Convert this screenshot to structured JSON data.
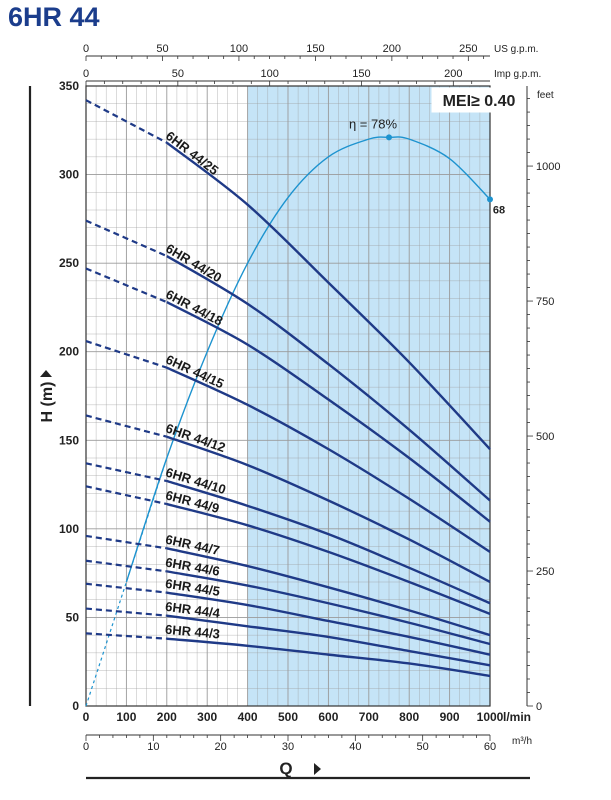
{
  "title": "6HR 44",
  "chart_data": {
    "type": "line",
    "title": "6HR 44",
    "xlabel": "Q",
    "x_unit": "l/min",
    "ylabel": "H (m)",
    "xlim": [
      0,
      1000
    ],
    "ylim": [
      0,
      350
    ],
    "x_ticks": [
      0,
      100,
      200,
      300,
      400,
      500,
      600,
      700,
      800,
      900,
      1000
    ],
    "y_ticks": [
      0,
      50,
      100,
      150,
      200,
      250,
      300,
      350
    ],
    "grid": true,
    "recommended_range": [
      400,
      1000
    ],
    "mei_label": "MEI≥ 0.40",
    "secondary_axes": {
      "top_us": {
        "unit": "US g.p.m.",
        "ticks": [
          "0",
          "50",
          "100",
          "150",
          "200",
          "250"
        ]
      },
      "top_imp": {
        "unit": "Imp g.p.m.",
        "ticks": [
          "0",
          "50",
          "100",
          "150",
          "200"
        ]
      },
      "right_feet": {
        "unit": "feet",
        "ticks": [
          "0",
          "250",
          "500",
          "750",
          "1000"
        ]
      },
      "bottom_m3h": {
        "unit": "m³/h",
        "ticks": [
          "0",
          "10",
          "20",
          "30",
          "40",
          "50",
          "60"
        ]
      }
    },
    "series": [
      {
        "name": "6HR 44/25",
        "x": [
          0,
          200,
          400,
          600,
          800,
          1000
        ],
        "y": [
          342,
          318,
          283,
          239,
          194,
          145
        ]
      },
      {
        "name": "6HR 44/20",
        "x": [
          0,
          200,
          400,
          600,
          800,
          1000
        ],
        "y": [
          274,
          254,
          227,
          193,
          156,
          116
        ]
      },
      {
        "name": "6HR 44/18",
        "x": [
          0,
          200,
          400,
          600,
          800,
          1000
        ],
        "y": [
          247,
          228,
          204,
          173,
          140,
          104
        ]
      },
      {
        "name": "6HR 44/15",
        "x": [
          0,
          200,
          400,
          600,
          800,
          1000
        ],
        "y": [
          206,
          191,
          170,
          145,
          117,
          87
        ]
      },
      {
        "name": "6HR 44/12",
        "x": [
          0,
          200,
          400,
          600,
          800,
          1000
        ],
        "y": [
          164,
          152,
          136,
          116,
          94,
          70
        ]
      },
      {
        "name": "6HR 44/10",
        "x": [
          0,
          200,
          400,
          600,
          800,
          1000
        ],
        "y": [
          137,
          127,
          113,
          97,
          78,
          58
        ]
      },
      {
        "name": "6HR 44/9",
        "x": [
          0,
          200,
          400,
          600,
          800,
          1000
        ],
        "y": [
          124,
          114,
          102,
          87,
          70,
          52
        ]
      },
      {
        "name": "6HR 44/7",
        "x": [
          0,
          200,
          400,
          600,
          800,
          1000
        ],
        "y": [
          96,
          89,
          79,
          67,
          54,
          40
        ]
      },
      {
        "name": "6HR 44/6",
        "x": [
          0,
          200,
          400,
          600,
          800,
          1000
        ],
        "y": [
          82,
          76,
          68,
          58,
          47,
          35
        ]
      },
      {
        "name": "6HR 44/5",
        "x": [
          0,
          200,
          400,
          600,
          800,
          1000
        ],
        "y": [
          69,
          64,
          57,
          48,
          39,
          29
        ]
      },
      {
        "name": "6HR 44/4",
        "x": [
          0,
          200,
          400,
          600,
          800,
          1000
        ],
        "y": [
          55,
          51,
          45,
          39,
          31,
          23
        ]
      },
      {
        "name": "6HR 44/3",
        "x": [
          0,
          200,
          400,
          600,
          800,
          1000
        ],
        "y": [
          41,
          38,
          34,
          29,
          24,
          17
        ]
      }
    ],
    "efficiency": {
      "peak_label": "η = 78%",
      "end_label": "68",
      "x": [
        0,
        100,
        200,
        300,
        400,
        500,
        600,
        700,
        750,
        800,
        900,
        1000
      ],
      "y": [
        0,
        70,
        140,
        200,
        250,
        287,
        310,
        320,
        321,
        320,
        309,
        286
      ]
    },
    "colors": {
      "curve": "#1f3a87",
      "efficiency": "#1d93cf",
      "band": "#c5e4f7",
      "title": "#1b3d8c",
      "grid": "#9a9a9a"
    }
  }
}
